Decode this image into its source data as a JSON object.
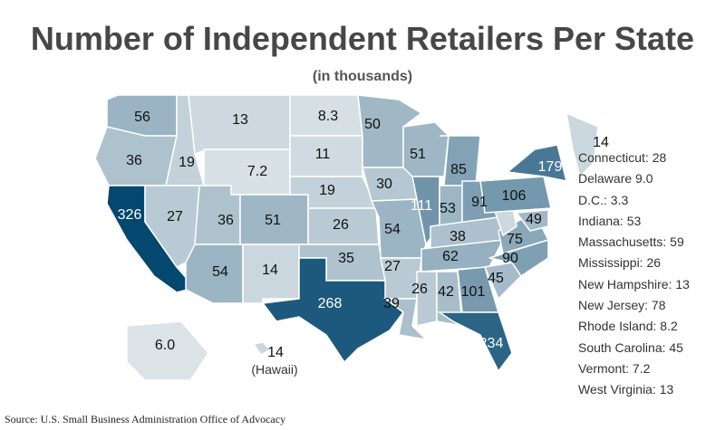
{
  "chart_data": {
    "type": "choropleth map",
    "title": "Number of Independent Retailers Per State",
    "subtitle": "(in thousands)",
    "source": "Source: U.S. Small Business Administration Office of Advocacy",
    "color_scale": {
      "low": "#f6f6f6",
      "high": "#04476f"
    },
    "states": [
      {
        "state": "Washington",
        "value": "56"
      },
      {
        "state": "Oregon",
        "value": "36"
      },
      {
        "state": "California",
        "value": "326"
      },
      {
        "state": "Idaho",
        "value": "19"
      },
      {
        "state": "Nevada",
        "value": "27"
      },
      {
        "state": "Montana",
        "value": "13"
      },
      {
        "state": "Wyoming",
        "value": "7.2"
      },
      {
        "state": "Utah",
        "value": "36"
      },
      {
        "state": "Arizona",
        "value": "54"
      },
      {
        "state": "Colorado",
        "value": "51"
      },
      {
        "state": "New Mexico",
        "value": "14"
      },
      {
        "state": "North Dakota",
        "value": "8.3"
      },
      {
        "state": "South Dakota",
        "value": "11"
      },
      {
        "state": "Nebraska",
        "value": "19"
      },
      {
        "state": "Kansas",
        "value": "26"
      },
      {
        "state": "Oklahoma",
        "value": "35"
      },
      {
        "state": "Texas",
        "value": "268"
      },
      {
        "state": "Minnesota",
        "value": "50"
      },
      {
        "state": "Iowa",
        "value": "30"
      },
      {
        "state": "Missouri",
        "value": "54"
      },
      {
        "state": "Arkansas",
        "value": "27"
      },
      {
        "state": "Louisiana",
        "value": "39"
      },
      {
        "state": "Wisconsin",
        "value": "51"
      },
      {
        "state": "Illinois",
        "value": "111"
      },
      {
        "state": "Michigan",
        "value": "85"
      },
      {
        "state": "Indiana",
        "value": "53"
      },
      {
        "state": "Ohio",
        "value": "91"
      },
      {
        "state": "Kentucky",
        "value": "38"
      },
      {
        "state": "Tennessee",
        "value": "62"
      },
      {
        "state": "Mississippi",
        "value": "26"
      },
      {
        "state": "Alabama",
        "value": "42"
      },
      {
        "state": "Georgia",
        "value": "101"
      },
      {
        "state": "Florida",
        "value": "234"
      },
      {
        "state": "South Carolina",
        "value": "45"
      },
      {
        "state": "North Carolina",
        "value": "90"
      },
      {
        "state": "Virginia",
        "value": "75"
      },
      {
        "state": "West Virginia",
        "value": "13"
      },
      {
        "state": "Pennsylvania",
        "value": "106"
      },
      {
        "state": "New York",
        "value": "179"
      },
      {
        "state": "Maryland",
        "value": "49"
      },
      {
        "state": "Maine",
        "value": "14"
      },
      {
        "state": "Alaska",
        "value": "6.0"
      },
      {
        "state": "Hawaii",
        "value": "14"
      }
    ],
    "hawaii_label": "(Hawaii)",
    "legend": [
      "Connecticut: 28",
      "Delaware 9.0",
      "D.C.: 3.3",
      "Indiana: 53",
      "Massachusetts: 59",
      "Mississippi: 26",
      "New Hampshire: 13",
      "New Jersey: 78",
      "Rhode Island: 8.2",
      "South Carolina: 45",
      "Vermont: 7.2",
      "West Virginia: 13"
    ]
  }
}
